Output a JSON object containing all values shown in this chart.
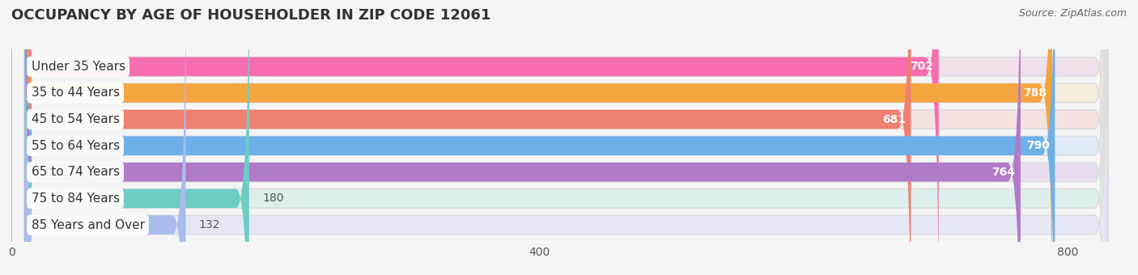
{
  "title": "OCCUPANCY BY AGE OF HOUSEHOLDER IN ZIP CODE 12061",
  "source": "Source: ZipAtlas.com",
  "categories": [
    "Under 35 Years",
    "35 to 44 Years",
    "45 to 54 Years",
    "55 to 64 Years",
    "65 to 74 Years",
    "75 to 84 Years",
    "85 Years and Over"
  ],
  "values": [
    702,
    788,
    681,
    790,
    764,
    180,
    132
  ],
  "bar_colors": [
    "#F76DAD",
    "#F5A53F",
    "#F08070",
    "#6EB0E8",
    "#B07AC8",
    "#6DCDC4",
    "#AABCEE"
  ],
  "bar_bg_colors": [
    "#EFE0EC",
    "#F5EDDF",
    "#F5E2DE",
    "#E0EBF5",
    "#E8DDEF",
    "#DCEEED",
    "#E4E8F5"
  ],
  "xlim_max": 840,
  "xticks": [
    0,
    400,
    800
  ],
  "title_fontsize": 13,
  "label_fontsize": 11,
  "value_fontsize": 10,
  "bg_color": "#f5f5f5"
}
